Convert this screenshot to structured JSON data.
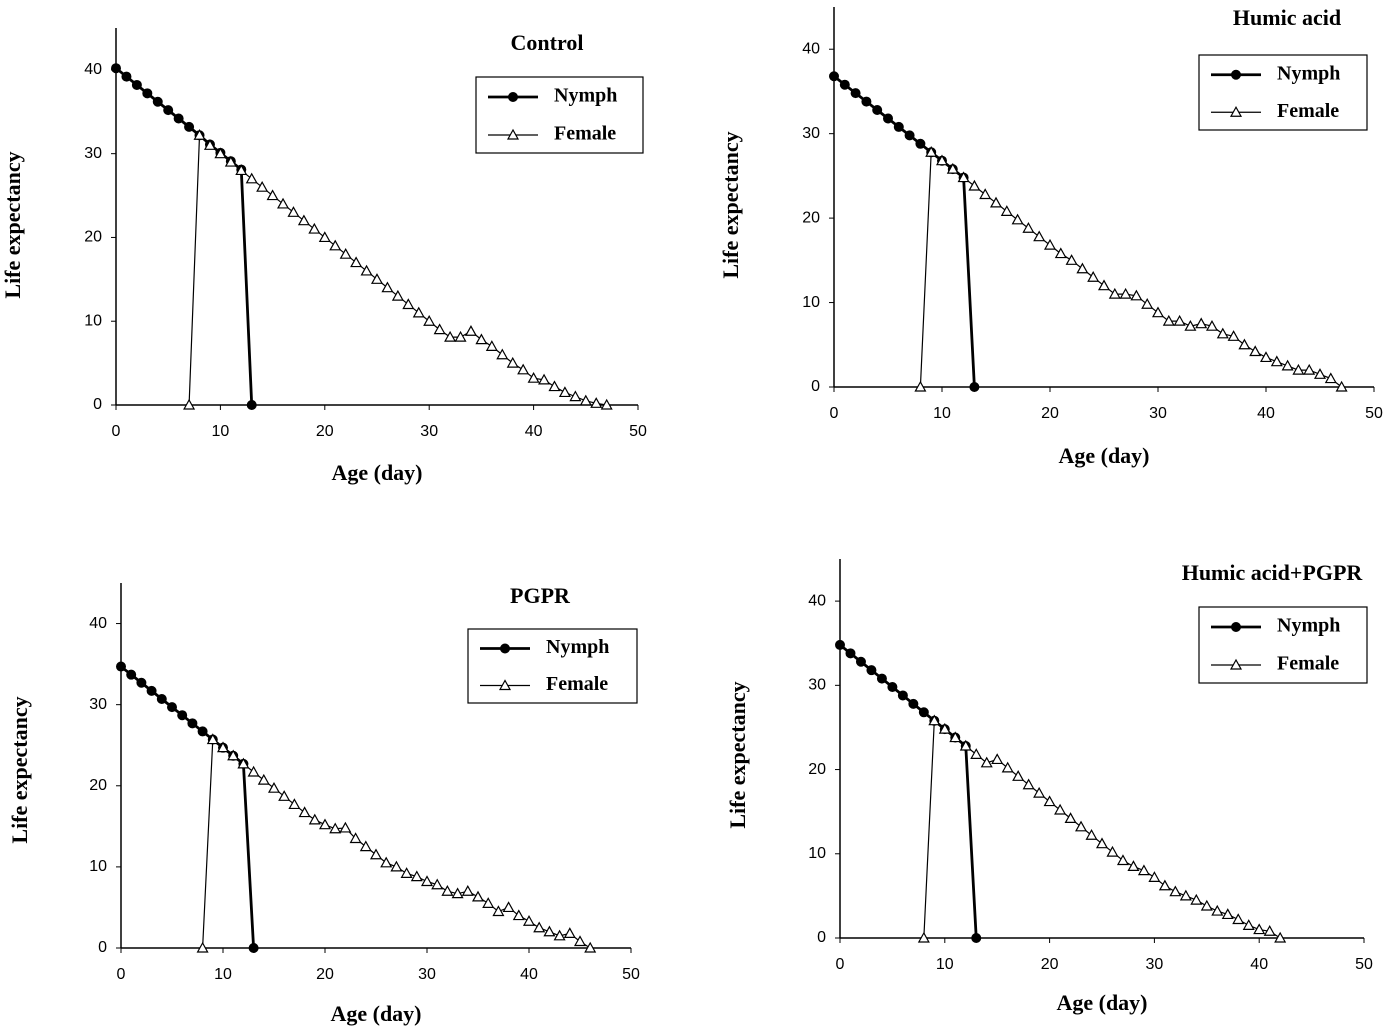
{
  "chart_data": [
    {
      "type": "line",
      "title": "Control",
      "x_label": "Age (day)",
      "y_label": "Life expectancy",
      "x": [
        0,
        1,
        2,
        3,
        4,
        5,
        6,
        7,
        8,
        9,
        10,
        11,
        12,
        13,
        14,
        15,
        16,
        17,
        18,
        19,
        20,
        21,
        22,
        23,
        24,
        25,
        26,
        27,
        28,
        29,
        30,
        31,
        32,
        33,
        34,
        35,
        36,
        37,
        38,
        39,
        40,
        41,
        42,
        43,
        44,
        45,
        46,
        47
      ],
      "series": [
        {
          "name": "Nymph",
          "color": "#000000",
          "marker": "circle",
          "values": [
            40.2,
            39.2,
            38.2,
            37.2,
            36.2,
            35.2,
            34.2,
            33.2,
            32.2,
            31.1,
            30.1,
            29.1,
            28.1,
            0,
            null,
            null,
            null,
            null,
            null,
            null,
            null,
            null,
            null,
            null,
            null,
            null,
            null,
            null,
            null,
            null,
            null,
            null,
            null,
            null,
            null,
            null,
            null,
            null,
            null,
            null,
            null,
            null,
            null,
            null,
            null,
            null,
            null,
            null
          ]
        },
        {
          "name": "Female",
          "color": "#000000",
          "marker": "triangle",
          "values": [
            null,
            null,
            null,
            null,
            null,
            null,
            null,
            0,
            32.2,
            31,
            30,
            29,
            28,
            27,
            26,
            25,
            24,
            23,
            22,
            21,
            20,
            19,
            18,
            17,
            16,
            15,
            14,
            13,
            12,
            11,
            10,
            9,
            8.1,
            8.1,
            8.8,
            7.8,
            7,
            6,
            5,
            4.2,
            3.2,
            3,
            2.2,
            1.5,
            1,
            0.5,
            0.2,
            0
          ]
        }
      ],
      "xlim": [
        0,
        50
      ],
      "xticks": [
        0,
        10,
        20,
        30,
        40,
        50
      ],
      "ylim": [
        0,
        45
      ],
      "yticks": [
        0,
        10,
        20,
        30,
        40
      ]
    },
    {
      "type": "line",
      "title": "Humic acid",
      "x_label": "Age (day)",
      "y_label": "Life expectancy",
      "x": [
        0,
        1,
        2,
        3,
        4,
        5,
        6,
        7,
        8,
        9,
        10,
        11,
        12,
        13,
        14,
        15,
        16,
        17,
        18,
        19,
        20,
        21,
        22,
        23,
        24,
        25,
        26,
        27,
        28,
        29,
        30,
        31,
        32,
        33,
        34,
        35,
        36,
        37,
        38,
        39,
        40,
        41,
        42,
        43,
        44,
        45,
        46,
        47
      ],
      "series": [
        {
          "name": "Nymph",
          "color": "#000000",
          "marker": "circle",
          "values": [
            36.8,
            35.8,
            34.8,
            33.8,
            32.8,
            31.8,
            30.8,
            29.8,
            28.8,
            27.8,
            26.8,
            25.8,
            24.8,
            0,
            null,
            null,
            null,
            null,
            null,
            null,
            null,
            null,
            null,
            null,
            null,
            null,
            null,
            null,
            null,
            null,
            null,
            null,
            null,
            null,
            null,
            null,
            null,
            null,
            null,
            null,
            null,
            null,
            null,
            null,
            null,
            null,
            null,
            null
          ]
        },
        {
          "name": "Female",
          "color": "#000000",
          "marker": "triangle",
          "values": [
            null,
            null,
            null,
            null,
            null,
            null,
            null,
            null,
            0,
            27.8,
            26.8,
            25.8,
            24.8,
            23.8,
            22.8,
            21.8,
            20.8,
            19.8,
            18.8,
            17.8,
            16.8,
            15.8,
            15,
            14,
            13,
            12,
            11,
            11,
            10.8,
            9.8,
            8.8,
            7.8,
            7.8,
            7.2,
            7.5,
            7.2,
            6.3,
            6,
            5,
            4.2,
            3.5,
            3,
            2.5,
            2,
            2,
            1.5,
            1,
            0
          ]
        }
      ],
      "xlim": [
        0,
        50
      ],
      "xticks": [
        0,
        10,
        20,
        30,
        40,
        50
      ],
      "ylim": [
        0,
        45
      ],
      "yticks": [
        0,
        10,
        20,
        30,
        40
      ]
    },
    {
      "type": "line",
      "title": "PGPR",
      "x_label": "Age (day)",
      "y_label": "Life expectancy",
      "x": [
        0,
        1,
        2,
        3,
        4,
        5,
        6,
        7,
        8,
        9,
        10,
        11,
        12,
        13,
        14,
        15,
        16,
        17,
        18,
        19,
        20,
        21,
        22,
        23,
        24,
        25,
        26,
        27,
        28,
        29,
        30,
        31,
        32,
        33,
        34,
        35,
        36,
        37,
        38,
        39,
        40,
        41,
        42,
        43,
        44,
        45,
        46
      ],
      "series": [
        {
          "name": "Nymph",
          "color": "#000000",
          "marker": "circle",
          "values": [
            34.7,
            33.7,
            32.7,
            31.7,
            30.7,
            29.7,
            28.7,
            27.7,
            26.7,
            25.7,
            24.7,
            23.7,
            22.7,
            0,
            null,
            null,
            null,
            null,
            null,
            null,
            null,
            null,
            null,
            null,
            null,
            null,
            null,
            null,
            null,
            null,
            null,
            null,
            null,
            null,
            null,
            null,
            null,
            null,
            null,
            null,
            null,
            null,
            null,
            null,
            null,
            null,
            null
          ]
        },
        {
          "name": "Female",
          "color": "#000000",
          "marker": "triangle",
          "values": [
            null,
            null,
            null,
            null,
            null,
            null,
            null,
            null,
            0,
            25.7,
            24.7,
            23.7,
            22.7,
            21.7,
            20.7,
            19.7,
            18.7,
            17.7,
            16.7,
            15.8,
            15.2,
            14.7,
            14.8,
            13.5,
            12.5,
            11.5,
            10.5,
            10,
            9.2,
            8.8,
            8.2,
            7.8,
            7,
            6.7,
            7,
            6.3,
            5.5,
            4.5,
            5,
            4,
            3.3,
            2.5,
            2,
            1.5,
            1.8,
            0.8,
            0
          ]
        }
      ],
      "xlim": [
        0,
        50
      ],
      "xticks": [
        0,
        10,
        20,
        30,
        40,
        50
      ],
      "ylim": [
        0,
        45
      ],
      "yticks": [
        0,
        10,
        20,
        30,
        40
      ]
    },
    {
      "type": "line",
      "title": "Humic acid+PGPR",
      "x_label": "Age (day)",
      "y_label": "Life expectancy",
      "x": [
        0,
        1,
        2,
        3,
        4,
        5,
        6,
        7,
        8,
        9,
        10,
        11,
        12,
        13,
        14,
        15,
        16,
        17,
        18,
        19,
        20,
        21,
        22,
        23,
        24,
        25,
        26,
        27,
        28,
        29,
        30,
        31,
        32,
        33,
        34,
        35,
        36,
        37,
        38,
        39,
        40,
        41,
        42
      ],
      "series": [
        {
          "name": "Nymph",
          "color": "#000000",
          "marker": "circle",
          "values": [
            34.8,
            33.8,
            32.8,
            31.8,
            30.8,
            29.8,
            28.8,
            27.8,
            26.8,
            25.8,
            24.8,
            23.8,
            22.8,
            0,
            null,
            null,
            null,
            null,
            null,
            null,
            null,
            null,
            null,
            null,
            null,
            null,
            null,
            null,
            null,
            null,
            null,
            null,
            null,
            null,
            null,
            null,
            null,
            null,
            null,
            null,
            null,
            null,
            null
          ]
        },
        {
          "name": "Female",
          "color": "#000000",
          "marker": "triangle",
          "values": [
            null,
            null,
            null,
            null,
            null,
            null,
            null,
            null,
            0,
            25.8,
            24.8,
            23.8,
            22.8,
            21.8,
            20.8,
            21.2,
            20.2,
            19.2,
            18.2,
            17.2,
            16.2,
            15.2,
            14.2,
            13.2,
            12.2,
            11.2,
            10.2,
            9.2,
            8.5,
            8,
            7.2,
            6.2,
            5.5,
            5,
            4.5,
            3.8,
            3.2,
            2.8,
            2.2,
            1.5,
            1,
            0.8,
            0
          ]
        }
      ],
      "xlim": [
        0,
        50
      ],
      "xticks": [
        0,
        10,
        20,
        30,
        40,
        50
      ],
      "ylim": [
        0,
        45
      ],
      "yticks": [
        0,
        10,
        20,
        30,
        40
      ]
    }
  ]
}
